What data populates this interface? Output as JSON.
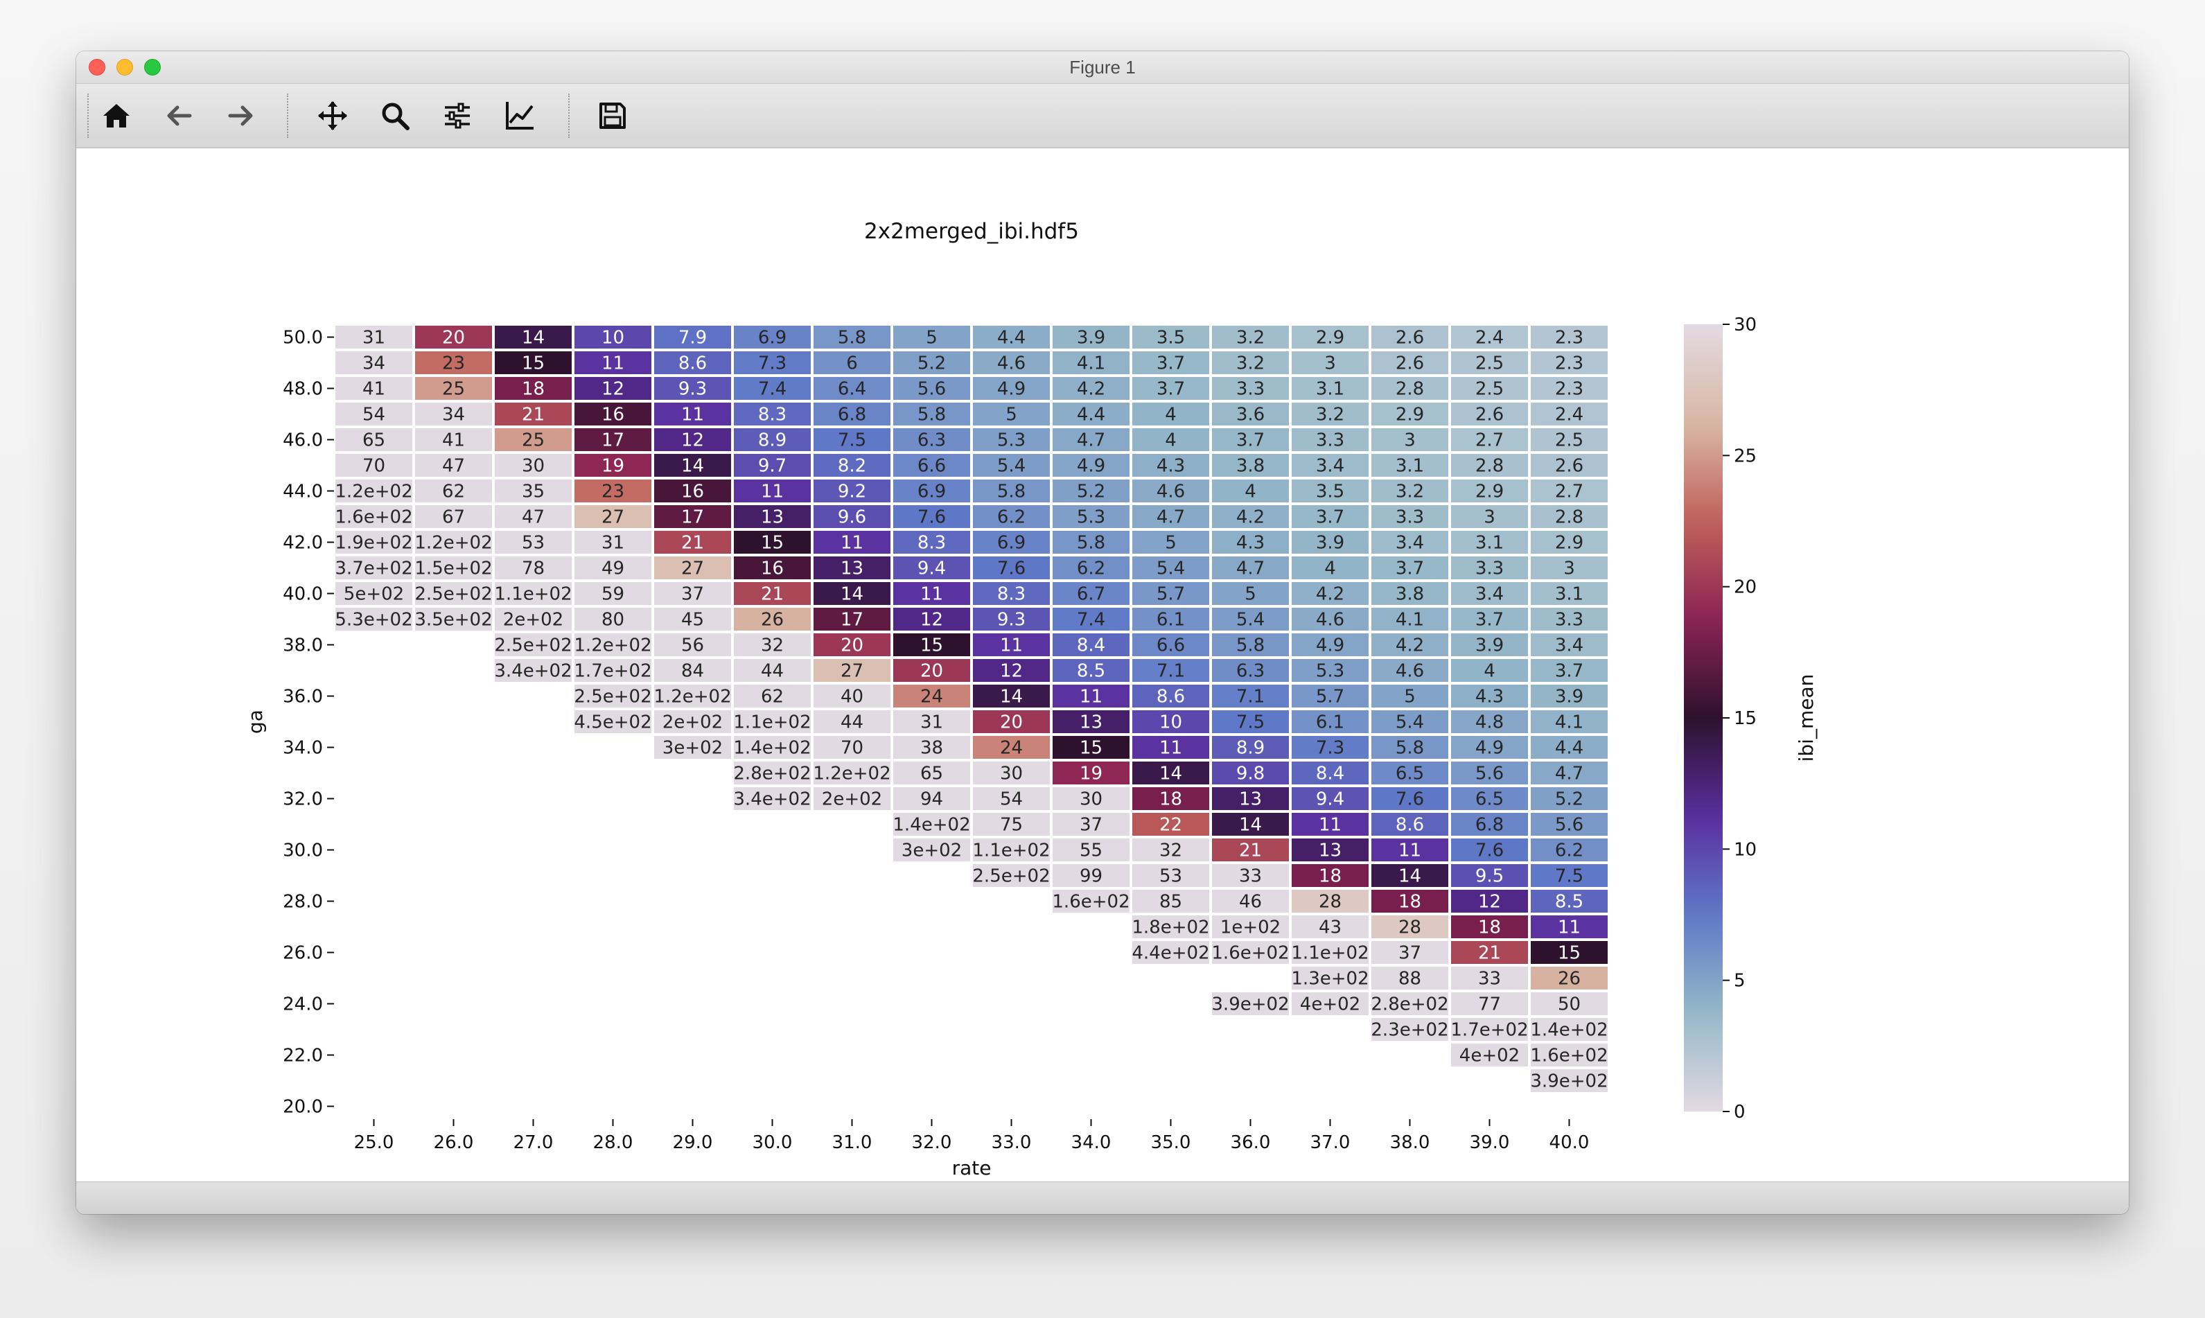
{
  "window": {
    "title": "Figure 1"
  },
  "toolbar": {
    "buttons": [
      {
        "name": "home-icon",
        "label": "Home"
      },
      {
        "name": "back-icon",
        "label": "Back"
      },
      {
        "name": "forward-icon",
        "label": "Forward"
      },
      {
        "name": "pan-icon",
        "label": "Pan"
      },
      {
        "name": "zoom-icon",
        "label": "Zoom"
      },
      {
        "name": "configure-subplots-icon",
        "label": "Configure subplots"
      },
      {
        "name": "edit-axis-icon",
        "label": "Edit axis"
      },
      {
        "name": "save-icon",
        "label": "Save"
      }
    ]
  },
  "colors": {
    "cell_border": "#ffffff",
    "text_dark": "#262626",
    "text_light": "#ffffff"
  },
  "chart_data": {
    "type": "heatmap",
    "title": "2x2merged_ibi.hdf5",
    "xlabel": "rate",
    "ylabel": "ga",
    "x": [
      "25.0",
      "26.0",
      "27.0",
      "28.0",
      "29.0",
      "30.0",
      "31.0",
      "32.0",
      "33.0",
      "34.0",
      "35.0",
      "36.0",
      "37.0",
      "38.0",
      "39.0",
      "40.0"
    ],
    "y": [
      "50.0",
      "49.0",
      "48.0",
      "47.0",
      "46.0",
      "45.0",
      "44.0",
      "43.0",
      "42.0",
      "41.0",
      "40.0",
      "39.0",
      "38.0",
      "37.0",
      "36.0",
      "35.0",
      "34.0",
      "33.0",
      "32.0",
      "31.0",
      "30.0",
      "29.0",
      "28.0",
      "27.0",
      "26.0",
      "25.0",
      "24.0",
      "23.0",
      "22.0",
      "21.0",
      "20.0"
    ],
    "yticks": [
      "50.0",
      "48.0",
      "46.0",
      "44.0",
      "42.0",
      "40.0",
      "38.0",
      "36.0",
      "34.0",
      "32.0",
      "30.0",
      "28.0",
      "26.0",
      "24.0",
      "22.0",
      "20.0"
    ],
    "values": [
      [
        31,
        20,
        14,
        10,
        7.9,
        6.9,
        5.8,
        5,
        4.4,
        3.9,
        3.5,
        3.2,
        2.9,
        2.6,
        2.4,
        2.3
      ],
      [
        34,
        23,
        15,
        11,
        8.6,
        7.3,
        6,
        5.2,
        4.6,
        4.1,
        3.7,
        3.2,
        3,
        2.6,
        2.5,
        2.3
      ],
      [
        41,
        25,
        18,
        12,
        9.3,
        7.4,
        6.4,
        5.6,
        4.9,
        4.2,
        3.7,
        3.3,
        3.1,
        2.8,
        2.5,
        2.3
      ],
      [
        54,
        34,
        21,
        16,
        11,
        8.3,
        6.8,
        5.8,
        5,
        4.4,
        4,
        3.6,
        3.2,
        2.9,
        2.6,
        2.4
      ],
      [
        65,
        41,
        25,
        17,
        12,
        8.9,
        7.5,
        6.3,
        5.3,
        4.7,
        4,
        3.7,
        3.3,
        3,
        2.7,
        2.5
      ],
      [
        70,
        47,
        30,
        19,
        14,
        9.7,
        8.2,
        6.6,
        5.4,
        4.9,
        4.3,
        3.8,
        3.4,
        3.1,
        2.8,
        2.6
      ],
      [
        120,
        62,
        35,
        23,
        16,
        11,
        9.2,
        6.9,
        5.8,
        5.2,
        4.6,
        4,
        3.5,
        3.2,
        2.9,
        2.7
      ],
      [
        160,
        67,
        47,
        27,
        17,
        13,
        9.6,
        7.6,
        6.2,
        5.3,
        4.7,
        4.2,
        3.7,
        3.3,
        3,
        2.8
      ],
      [
        190,
        120,
        53,
        31,
        21,
        15,
        11,
        8.3,
        6.9,
        5.8,
        5,
        4.3,
        3.9,
        3.4,
        3.1,
        2.9
      ],
      [
        370,
        150,
        78,
        49,
        27,
        16,
        13,
        9.4,
        7.6,
        6.2,
        5.4,
        4.7,
        4,
        3.7,
        3.3,
        3
      ],
      [
        500,
        250,
        110,
        59,
        37,
        21,
        14,
        11,
        8.3,
        6.7,
        5.7,
        5,
        4.2,
        3.8,
        3.4,
        3.1
      ],
      [
        530,
        350,
        200,
        80,
        45,
        26,
        17,
        12,
        9.3,
        7.4,
        6.1,
        5.4,
        4.6,
        4.1,
        3.7,
        3.3
      ],
      [
        null,
        null,
        250,
        120,
        56,
        32,
        20,
        15,
        11,
        8.4,
        6.6,
        5.8,
        4.9,
        4.2,
        3.9,
        3.4
      ],
      [
        null,
        null,
        340,
        170,
        84,
        44,
        27,
        20,
        12,
        8.5,
        7.1,
        6.3,
        5.3,
        4.6,
        4,
        3.7
      ],
      [
        null,
        null,
        null,
        250,
        120,
        62,
        40,
        24,
        14,
        11,
        8.6,
        7.1,
        5.7,
        5,
        4.3,
        3.9
      ],
      [
        null,
        null,
        null,
        450,
        200,
        110,
        44,
        31,
        20,
        13,
        10,
        7.5,
        6.1,
        5.4,
        4.8,
        4.1
      ],
      [
        null,
        null,
        null,
        null,
        300,
        140,
        70,
        38,
        24,
        15,
        11,
        8.9,
        7.3,
        5.8,
        4.9,
        4.4
      ],
      [
        null,
        null,
        null,
        null,
        null,
        280,
        120,
        65,
        30,
        19,
        14,
        9.8,
        8.4,
        6.5,
        5.6,
        4.7
      ],
      [
        null,
        null,
        null,
        null,
        null,
        340,
        200,
        94,
        54,
        30,
        18,
        13,
        9.4,
        7.6,
        6.5,
        5.2
      ],
      [
        null,
        null,
        null,
        null,
        null,
        null,
        null,
        140,
        75,
        37,
        22,
        14,
        11,
        8.6,
        6.8,
        5.6
      ],
      [
        null,
        null,
        null,
        null,
        null,
        null,
        null,
        300,
        110,
        55,
        32,
        21,
        13,
        11,
        7.6,
        6.2
      ],
      [
        null,
        null,
        null,
        null,
        null,
        null,
        null,
        null,
        250,
        99,
        53,
        33,
        18,
        14,
        9.5,
        7.5
      ],
      [
        null,
        null,
        null,
        null,
        null,
        null,
        null,
        null,
        null,
        160,
        85,
        46,
        28,
        18,
        12,
        8.5
      ],
      [
        null,
        null,
        null,
        null,
        null,
        null,
        null,
        null,
        null,
        null,
        180,
        100,
        43,
        28,
        18,
        11
      ],
      [
        null,
        null,
        null,
        null,
        null,
        null,
        null,
        null,
        null,
        null,
        440,
        160,
        110,
        37,
        21,
        15
      ],
      [
        null,
        null,
        null,
        null,
        null,
        null,
        null,
        null,
        null,
        null,
        null,
        null,
        130,
        88,
        33,
        26
      ],
      [
        null,
        null,
        null,
        null,
        null,
        null,
        null,
        null,
        null,
        null,
        null,
        390,
        400,
        280,
        77,
        50
      ],
      [
        null,
        null,
        null,
        null,
        null,
        null,
        null,
        null,
        null,
        null,
        null,
        null,
        null,
        230,
        170,
        140
      ],
      [
        null,
        null,
        null,
        null,
        null,
        null,
        null,
        null,
        null,
        null,
        null,
        null,
        null,
        null,
        400,
        160
      ],
      [
        null,
        null,
        null,
        null,
        null,
        null,
        null,
        null,
        null,
        null,
        null,
        null,
        null,
        null,
        null,
        390
      ],
      [
        null,
        null,
        null,
        null,
        null,
        null,
        null,
        null,
        null,
        null,
        null,
        null,
        null,
        null,
        null,
        null
      ]
    ],
    "labels": [
      [
        "31",
        "20",
        "14",
        "10",
        "7.9",
        "6.9",
        "5.8",
        "5",
        "4.4",
        "3.9",
        "3.5",
        "3.2",
        "2.9",
        "2.6",
        "2.4",
        "2.3"
      ],
      [
        "34",
        "23",
        "15",
        "11",
        "8.6",
        "7.3",
        "6",
        "5.2",
        "4.6",
        "4.1",
        "3.7",
        "3.2",
        "3",
        "2.6",
        "2.5",
        "2.3"
      ],
      [
        "41",
        "25",
        "18",
        "12",
        "9.3",
        "7.4",
        "6.4",
        "5.6",
        "4.9",
        "4.2",
        "3.7",
        "3.3",
        "3.1",
        "2.8",
        "2.5",
        "2.3"
      ],
      [
        "54",
        "34",
        "21",
        "16",
        "11",
        "8.3",
        "6.8",
        "5.8",
        "5",
        "4.4",
        "4",
        "3.6",
        "3.2",
        "2.9",
        "2.6",
        "2.4"
      ],
      [
        "65",
        "41",
        "25",
        "17",
        "12",
        "8.9",
        "7.5",
        "6.3",
        "5.3",
        "4.7",
        "4",
        "3.7",
        "3.3",
        "3",
        "2.7",
        "2.5"
      ],
      [
        "70",
        "47",
        "30",
        "19",
        "14",
        "9.7",
        "8.2",
        "6.6",
        "5.4",
        "4.9",
        "4.3",
        "3.8",
        "3.4",
        "3.1",
        "2.8",
        "2.6"
      ],
      [
        "1.2e+02",
        "62",
        "35",
        "23",
        "16",
        "11",
        "9.2",
        "6.9",
        "5.8",
        "5.2",
        "4.6",
        "4",
        "3.5",
        "3.2",
        "2.9",
        "2.7"
      ],
      [
        "1.6e+02",
        "67",
        "47",
        "27",
        "17",
        "13",
        "9.6",
        "7.6",
        "6.2",
        "5.3",
        "4.7",
        "4.2",
        "3.7",
        "3.3",
        "3",
        "2.8"
      ],
      [
        "1.9e+02",
        "1.2e+02",
        "53",
        "31",
        "21",
        "15",
        "11",
        "8.3",
        "6.9",
        "5.8",
        "5",
        "4.3",
        "3.9",
        "3.4",
        "3.1",
        "2.9"
      ],
      [
        "3.7e+02",
        "1.5e+02",
        "78",
        "49",
        "27",
        "16",
        "13",
        "9.4",
        "7.6",
        "6.2",
        "5.4",
        "4.7",
        "4",
        "3.7",
        "3.3",
        "3"
      ],
      [
        "5e+02",
        "2.5e+02",
        "1.1e+02",
        "59",
        "37",
        "21",
        "14",
        "11",
        "8.3",
        "6.7",
        "5.7",
        "5",
        "4.2",
        "3.8",
        "3.4",
        "3.1"
      ],
      [
        "5.3e+02",
        "3.5e+02",
        "2e+02",
        "80",
        "45",
        "26",
        "17",
        "12",
        "9.3",
        "7.4",
        "6.1",
        "5.4",
        "4.6",
        "4.1",
        "3.7",
        "3.3"
      ],
      [
        null,
        null,
        "2.5e+02",
        "1.2e+02",
        "56",
        "32",
        "20",
        "15",
        "11",
        "8.4",
        "6.6",
        "5.8",
        "4.9",
        "4.2",
        "3.9",
        "3.4"
      ],
      [
        null,
        null,
        "3.4e+02",
        "1.7e+02",
        "84",
        "44",
        "27",
        "20",
        "12",
        "8.5",
        "7.1",
        "6.3",
        "5.3",
        "4.6",
        "4",
        "3.7"
      ],
      [
        null,
        null,
        null,
        "2.5e+02",
        "1.2e+02",
        "62",
        "40",
        "24",
        "14",
        "11",
        "8.6",
        "7.1",
        "5.7",
        "5",
        "4.3",
        "3.9"
      ],
      [
        null,
        null,
        null,
        "4.5e+02",
        "2e+02",
        "1.1e+02",
        "44",
        "31",
        "20",
        "13",
        "10",
        "7.5",
        "6.1",
        "5.4",
        "4.8",
        "4.1"
      ],
      [
        null,
        null,
        null,
        null,
        "3e+02",
        "1.4e+02",
        "70",
        "38",
        "24",
        "15",
        "11",
        "8.9",
        "7.3",
        "5.8",
        "4.9",
        "4.4"
      ],
      [
        null,
        null,
        null,
        null,
        null,
        "2.8e+02",
        "1.2e+02",
        "65",
        "30",
        "19",
        "14",
        "9.8",
        "8.4",
        "6.5",
        "5.6",
        "4.7"
      ],
      [
        null,
        null,
        null,
        null,
        null,
        "3.4e+02",
        "2e+02",
        "94",
        "54",
        "30",
        "18",
        "13",
        "9.4",
        "7.6",
        "6.5",
        "5.2"
      ],
      [
        null,
        null,
        null,
        null,
        null,
        null,
        null,
        "1.4e+02",
        "75",
        "37",
        "22",
        "14",
        "11",
        "8.6",
        "6.8",
        "5.6"
      ],
      [
        null,
        null,
        null,
        null,
        null,
        null,
        null,
        "3e+02",
        "1.1e+02",
        "55",
        "32",
        "21",
        "13",
        "11",
        "7.6",
        "6.2"
      ],
      [
        null,
        null,
        null,
        null,
        null,
        null,
        null,
        null,
        "2.5e+02",
        "99",
        "53",
        "33",
        "18",
        "14",
        "9.5",
        "7.5"
      ],
      [
        null,
        null,
        null,
        null,
        null,
        null,
        null,
        null,
        null,
        "1.6e+02",
        "85",
        "46",
        "28",
        "18",
        "12",
        "8.5"
      ],
      [
        null,
        null,
        null,
        null,
        null,
        null,
        null,
        null,
        null,
        null,
        "1.8e+02",
        "1e+02",
        "43",
        "28",
        "18",
        "11"
      ],
      [
        null,
        null,
        null,
        null,
        null,
        null,
        null,
        null,
        null,
        null,
        "4.4e+02",
        "1.6e+02",
        "1.1e+02",
        "37",
        "21",
        "15"
      ],
      [
        null,
        null,
        null,
        null,
        null,
        null,
        null,
        null,
        null,
        null,
        null,
        null,
        "1.3e+02",
        "88",
        "33",
        "26"
      ],
      [
        null,
        null,
        null,
        null,
        null,
        null,
        null,
        null,
        null,
        null,
        null,
        "3.9e+02",
        "4e+02",
        "2.8e+02",
        "77",
        "50"
      ],
      [
        null,
        null,
        null,
        null,
        null,
        null,
        null,
        null,
        null,
        null,
        null,
        null,
        null,
        "2.3e+02",
        "1.7e+02",
        "1.4e+02"
      ],
      [
        null,
        null,
        null,
        null,
        null,
        null,
        null,
        null,
        null,
        null,
        null,
        null,
        null,
        null,
        "4e+02",
        "1.6e+02"
      ],
      [
        null,
        null,
        null,
        null,
        null,
        null,
        null,
        null,
        null,
        null,
        null,
        null,
        null,
        null,
        null,
        "3.9e+02"
      ],
      [
        null,
        null,
        null,
        null,
        null,
        null,
        null,
        null,
        null,
        null,
        null,
        null,
        null,
        null,
        null,
        null
      ]
    ],
    "colorbar": {
      "label": "ibi_mean",
      "range": [
        0,
        30
      ],
      "ticks": [
        "0",
        "5",
        "10",
        "15",
        "20",
        "25",
        "30"
      ],
      "colormap": [
        "#e2dae2",
        "#96b8c8",
        "#5f79c8",
        "#5a2e9e",
        "#2e112d",
        "#8b2355",
        "#c0605a",
        "#d9b8a6",
        "#e2dae2"
      ]
    },
    "grid": false,
    "legend": "colorbar-right"
  }
}
